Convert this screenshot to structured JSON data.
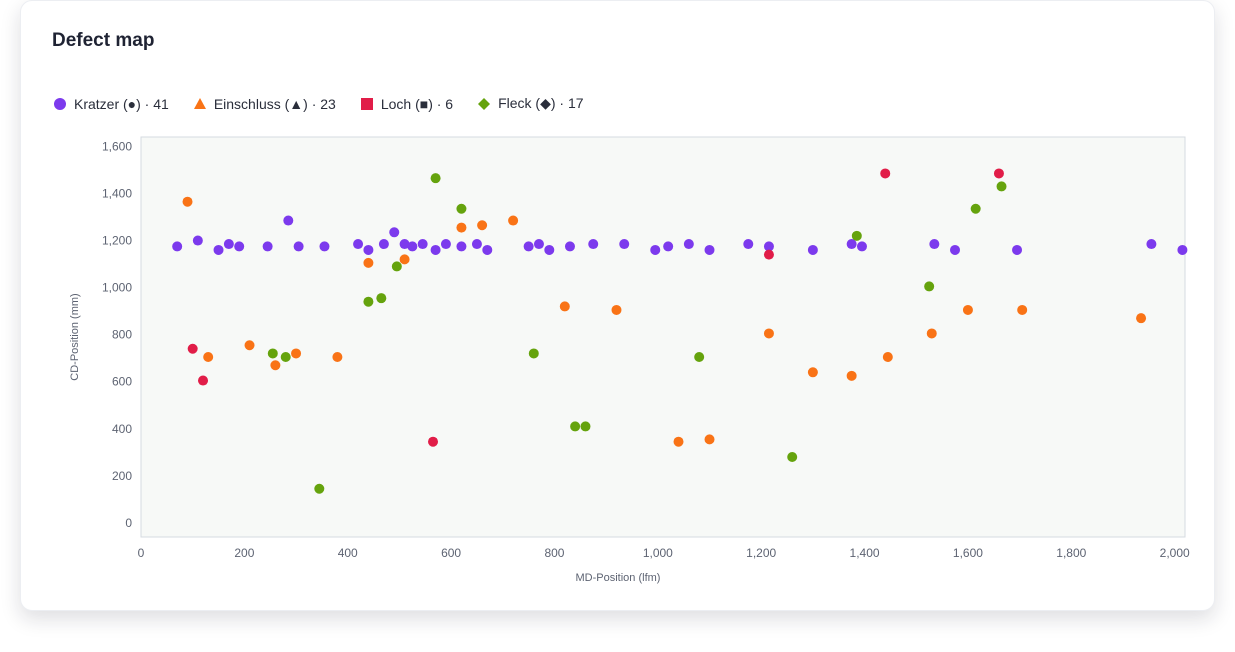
{
  "card": {
    "title": "Defect map"
  },
  "legend": [
    {
      "label": "Kratzer (●) · 41",
      "color": "#7c3aed",
      "icon": "circle-icon"
    },
    {
      "label": "Einschluss (▲) · 23",
      "color": "#f97316",
      "icon": "triangle-icon"
    },
    {
      "label": "Loch (■) · 6",
      "color": "#e11d48",
      "icon": "square-icon"
    },
    {
      "label": "Fleck (◆) · 17",
      "color": "#65a30d",
      "icon": "diamond-icon"
    }
  ],
  "chart_data": {
    "type": "scatter",
    "title": "Defect map",
    "xlabel": "MD-Position (lfm)",
    "ylabel": "CD-Position (mm)",
    "xlim": [
      0,
      2020
    ],
    "ylim": [
      -60,
      1640
    ],
    "xticks": [
      0,
      200,
      400,
      600,
      800,
      1000,
      1200,
      1400,
      1600,
      1800,
      2000
    ],
    "yticks": [
      0,
      200,
      400,
      600,
      800,
      1000,
      1200,
      1400,
      1600
    ],
    "xtick_labels": [
      "0",
      "200",
      "400",
      "600",
      "800",
      "1,000",
      "1,200",
      "1,400",
      "1,600",
      "1,800",
      "2,000"
    ],
    "ytick_labels": [
      "0",
      "200",
      "400",
      "600",
      "800",
      "1,000",
      "1,200",
      "1,400",
      "1,600"
    ],
    "grid": false,
    "legend_position": "top-left",
    "series": [
      {
        "name": "Kratzer",
        "color": "#7c3aed",
        "points": [
          [
            70,
            1175
          ],
          [
            110,
            1200
          ],
          [
            150,
            1160
          ],
          [
            170,
            1185
          ],
          [
            190,
            1175
          ],
          [
            245,
            1175
          ],
          [
            285,
            1285
          ],
          [
            305,
            1175
          ],
          [
            355,
            1175
          ],
          [
            420,
            1185
          ],
          [
            440,
            1160
          ],
          [
            470,
            1185
          ],
          [
            490,
            1235
          ],
          [
            510,
            1185
          ],
          [
            525,
            1175
          ],
          [
            545,
            1185
          ],
          [
            570,
            1160
          ],
          [
            590,
            1185
          ],
          [
            620,
            1175
          ],
          [
            650,
            1185
          ],
          [
            670,
            1160
          ],
          [
            750,
            1175
          ],
          [
            770,
            1185
          ],
          [
            790,
            1160
          ],
          [
            830,
            1175
          ],
          [
            875,
            1185
          ],
          [
            935,
            1185
          ],
          [
            995,
            1160
          ],
          [
            1020,
            1175
          ],
          [
            1060,
            1185
          ],
          [
            1100,
            1160
          ],
          [
            1175,
            1185
          ],
          [
            1215,
            1175
          ],
          [
            1300,
            1160
          ],
          [
            1375,
            1185
          ],
          [
            1395,
            1175
          ],
          [
            1535,
            1185
          ],
          [
            1575,
            1160
          ],
          [
            1695,
            1160
          ],
          [
            1955,
            1185
          ],
          [
            2015,
            1160
          ]
        ]
      },
      {
        "name": "Einschluss",
        "color": "#f97316",
        "points": [
          [
            90,
            1365
          ],
          [
            130,
            705
          ],
          [
            210,
            755
          ],
          [
            260,
            670
          ],
          [
            300,
            720
          ],
          [
            380,
            705
          ],
          [
            440,
            1105
          ],
          [
            510,
            1120
          ],
          [
            620,
            1255
          ],
          [
            660,
            1265
          ],
          [
            720,
            1285
          ],
          [
            820,
            920
          ],
          [
            920,
            905
          ],
          [
            1040,
            345
          ],
          [
            1100,
            355
          ],
          [
            1215,
            805
          ],
          [
            1300,
            640
          ],
          [
            1375,
            625
          ],
          [
            1445,
            705
          ],
          [
            1530,
            805
          ],
          [
            1600,
            905
          ],
          [
            1705,
            905
          ],
          [
            1935,
            870
          ]
        ]
      },
      {
        "name": "Loch",
        "color": "#e11d48",
        "points": [
          [
            100,
            740
          ],
          [
            120,
            605
          ],
          [
            565,
            345
          ],
          [
            1215,
            1140
          ],
          [
            1440,
            1485
          ],
          [
            1660,
            1485
          ]
        ]
      },
      {
        "name": "Fleck",
        "color": "#65a30d",
        "points": [
          [
            255,
            720
          ],
          [
            280,
            705
          ],
          [
            345,
            145
          ],
          [
            440,
            940
          ],
          [
            465,
            955
          ],
          [
            495,
            1090
          ],
          [
            570,
            1465
          ],
          [
            620,
            1335
          ],
          [
            760,
            720
          ],
          [
            840,
            410
          ],
          [
            860,
            410
          ],
          [
            1080,
            705
          ],
          [
            1260,
            280
          ],
          [
            1385,
            1220
          ],
          [
            1525,
            1005
          ],
          [
            1615,
            1335
          ],
          [
            1665,
            1430
          ]
        ]
      }
    ]
  }
}
